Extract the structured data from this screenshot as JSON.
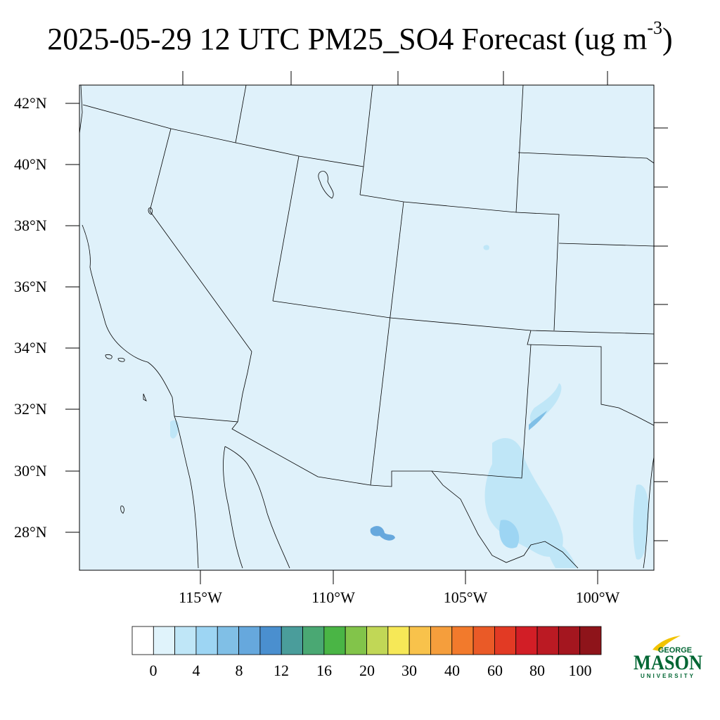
{
  "title": {
    "text": "2025-05-29 12 UTC PM25_SO4 Forecast (ug m",
    "exponent": "-3",
    "close": ")"
  },
  "lat_labels": [
    "42°N",
    "40°N",
    "38°N",
    "36°N",
    "34°N",
    "32°N",
    "30°N",
    "28°N"
  ],
  "lon_labels": [
    "115°W",
    "110°W",
    "105°W",
    "100°W"
  ],
  "colorbar": {
    "labels": [
      "0",
      "4",
      "8",
      "12",
      "16",
      "20",
      "30",
      "40",
      "60",
      "80",
      "100"
    ],
    "colors": [
      "#ffffff",
      "#e0f3fb",
      "#bfe6f7",
      "#9dd5f3",
      "#80bfe6",
      "#66a8dd",
      "#4a8fcf",
      "#4a9d9b",
      "#4aa873",
      "#4ab545",
      "#82c44a",
      "#c1d756",
      "#f6e857",
      "#f8c24b",
      "#f59e3c",
      "#f27a2c",
      "#ea5a27",
      "#e23a24",
      "#d21e26",
      "#bb1a23",
      "#a4161f",
      "#8e141a"
    ]
  },
  "logo": {
    "top": "GEORGE",
    "main": "MASON",
    "bottom": "UNIVERSITY"
  }
}
